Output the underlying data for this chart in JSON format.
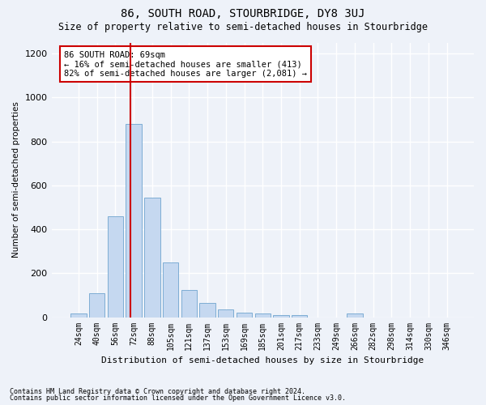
{
  "title": "86, SOUTH ROAD, STOURBRIDGE, DY8 3UJ",
  "subtitle": "Size of property relative to semi-detached houses in Stourbridge",
  "xlabel": "Distribution of semi-detached houses by size in Stourbridge",
  "ylabel": "Number of semi-detached properties",
  "footnote1": "Contains HM Land Registry data © Crown copyright and database right 2024.",
  "footnote2": "Contains public sector information licensed under the Open Government Licence v3.0.",
  "categories": [
    "24sqm",
    "40sqm",
    "56sqm",
    "72sqm",
    "88sqm",
    "105sqm",
    "121sqm",
    "137sqm",
    "153sqm",
    "169sqm",
    "185sqm",
    "201sqm",
    "217sqm",
    "233sqm",
    "249sqm",
    "266sqm",
    "282sqm",
    "298sqm",
    "314sqm",
    "330sqm",
    "346sqm"
  ],
  "values": [
    18,
    110,
    460,
    880,
    545,
    250,
    125,
    65,
    35,
    20,
    18,
    10,
    10,
    0,
    0,
    18,
    0,
    0,
    0,
    0,
    0
  ],
  "bar_color": "#c5d8f0",
  "bar_edge_color": "#7eadd4",
  "property_line_index": 2.81,
  "annotation_box_color": "#ffffff",
  "annotation_box_edge": "#cc0000",
  "line_color": "#cc0000",
  "ylim": [
    0,
    1250
  ],
  "yticks": [
    0,
    200,
    400,
    600,
    800,
    1000,
    1200
  ],
  "background_color": "#eef2f9",
  "grid_color": "#ffffff",
  "title_fontsize": 10,
  "subtitle_fontsize": 8.5,
  "annotation_line1": "86 SOUTH ROAD: 69sqm",
  "annotation_line2": "← 16% of semi-detached houses are smaller (413)",
  "annotation_line3": "82% of semi-detached houses are larger (2,081) →"
}
